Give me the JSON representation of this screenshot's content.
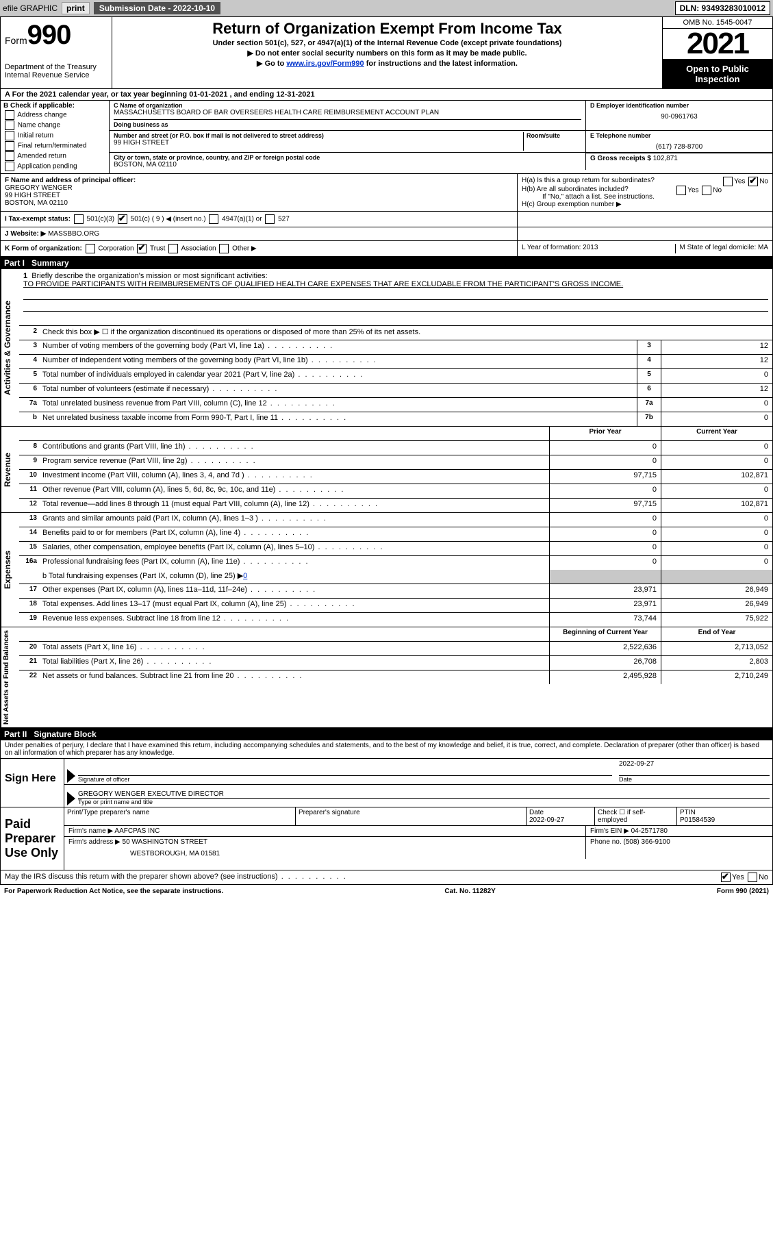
{
  "topbar": {
    "efile": "efile GRAPHIC",
    "print": "print",
    "subdate_label": "Submission Date - 2022-10-10",
    "dln": "DLN: 93493283010012"
  },
  "header": {
    "form_label": "Form",
    "form_num": "990",
    "dept": "Department of the Treasury",
    "irs": "Internal Revenue Service",
    "title": "Return of Organization Exempt From Income Tax",
    "sub1": "Under section 501(c), 527, or 4947(a)(1) of the Internal Revenue Code (except private foundations)",
    "sub2": "▶ Do not enter social security numbers on this form as it may be made public.",
    "sub3_pre": "▶ Go to ",
    "sub3_link": "www.irs.gov/Form990",
    "sub3_post": " for instructions and the latest information.",
    "omb": "OMB No. 1545-0047",
    "year": "2021",
    "inspect1": "Open to Public",
    "inspect2": "Inspection"
  },
  "A": {
    "text": "A For the 2021 calendar year, or tax year beginning 01-01-2021    , and ending 12-31-2021"
  },
  "B": {
    "label": "B Check if applicable:",
    "items": [
      "Address change",
      "Name change",
      "Initial return",
      "Final return/terminated",
      "Amended return",
      "Application pending"
    ]
  },
  "C": {
    "name_lbl": "C Name of organization",
    "name": "MASSACHUSETTS BOARD OF BAR OVERSEERS HEALTH CARE REIMBURSEMENT ACCOUNT PLAN",
    "dba_lbl": "Doing business as",
    "addr_lbl": "Number and street (or P.O. box if mail is not delivered to street address)",
    "room_lbl": "Room/suite",
    "addr": "99 HIGH STREET",
    "city_lbl": "City or town, state or province, country, and ZIP or foreign postal code",
    "city": "BOSTON, MA  02110"
  },
  "D": {
    "lbl": "D Employer identification number",
    "val": "90-0961763"
  },
  "E": {
    "lbl": "E Telephone number",
    "val": "(617) 728-8700"
  },
  "G": {
    "lbl": "G Gross receipts $",
    "val": "102,871"
  },
  "F": {
    "lbl": "F  Name and address of principal officer:",
    "name": "GREGORY WENGER",
    "addr1": "99 HIGH STREET",
    "addr2": "BOSTON, MA  02110"
  },
  "H": {
    "a": "H(a)  Is this a group return for subordinates?",
    "b": "H(b)  Are all subordinates included?",
    "b2": "If \"No,\" attach a list. See instructions.",
    "c": "H(c)  Group exemption number ▶",
    "yes": "Yes",
    "no": "No"
  },
  "I": {
    "lbl": "I    Tax-exempt status:",
    "opts": [
      "501(c)(3)",
      "501(c) ( 9 ) ◀ (insert no.)",
      "4947(a)(1) or",
      "527"
    ]
  },
  "J": {
    "lbl": "J   Website: ▶",
    "val": " MASSBBO.ORG"
  },
  "K": {
    "lbl": "K Form of organization:",
    "opts": [
      "Corporation",
      "Trust",
      "Association",
      "Other ▶"
    ]
  },
  "L": {
    "lbl": "L Year of formation: 2013"
  },
  "M": {
    "lbl": "M State of legal domicile: MA"
  },
  "part1": {
    "num": "Part I",
    "title": "Summary"
  },
  "summary": {
    "sec_ag": "Activities & Governance",
    "sec_rev": "Revenue",
    "sec_exp": "Expenses",
    "sec_net": "Net Assets or Fund Balances",
    "l1_lbl": "Briefly describe the organization's mission or most significant activities:",
    "l1_val": "TO PROVIDE PARTICIPANTS WITH REIMBURSEMENTS OF QUALIFIED HEALTH CARE EXPENSES THAT ARE EXCLUDABLE FROM THE PARTICIPANT'S GROSS INCOME.",
    "l2": "Check this box ▶ ☐  if the organization discontinued its operations or disposed of more than 25% of its net assets.",
    "rows_ag": [
      {
        "n": "3",
        "t": "Number of voting members of the governing body (Part VI, line 1a)",
        "box": "3",
        "v": "12"
      },
      {
        "n": "4",
        "t": "Number of independent voting members of the governing body (Part VI, line 1b)",
        "box": "4",
        "v": "12"
      },
      {
        "n": "5",
        "t": "Total number of individuals employed in calendar year 2021 (Part V, line 2a)",
        "box": "5",
        "v": "0"
      },
      {
        "n": "6",
        "t": "Total number of volunteers (estimate if necessary)",
        "box": "6",
        "v": "12"
      },
      {
        "n": "7a",
        "t": "Total unrelated business revenue from Part VIII, column (C), line 12",
        "box": "7a",
        "v": "0"
      },
      {
        "n": "b",
        "t": "Net unrelated business taxable income from Form 990-T, Part I, line 11",
        "box": "7b",
        "v": "0"
      }
    ],
    "col_prior": "Prior Year",
    "col_curr": "Current Year",
    "rows_rev": [
      {
        "n": "8",
        "t": "Contributions and grants (Part VIII, line 1h)",
        "p": "0",
        "c": "0"
      },
      {
        "n": "9",
        "t": "Program service revenue (Part VIII, line 2g)",
        "p": "0",
        "c": "0"
      },
      {
        "n": "10",
        "t": "Investment income (Part VIII, column (A), lines 3, 4, and 7d )",
        "p": "97,715",
        "c": "102,871"
      },
      {
        "n": "11",
        "t": "Other revenue (Part VIII, column (A), lines 5, 6d, 8c, 9c, 10c, and 11e)",
        "p": "0",
        "c": "0"
      },
      {
        "n": "12",
        "t": "Total revenue—add lines 8 through 11 (must equal Part VIII, column (A), line 12)",
        "p": "97,715",
        "c": "102,871"
      }
    ],
    "rows_exp": [
      {
        "n": "13",
        "t": "Grants and similar amounts paid (Part IX, column (A), lines 1–3 )",
        "p": "0",
        "c": "0"
      },
      {
        "n": "14",
        "t": "Benefits paid to or for members (Part IX, column (A), line 4)",
        "p": "0",
        "c": "0"
      },
      {
        "n": "15",
        "t": "Salaries, other compensation, employee benefits (Part IX, column (A), lines 5–10)",
        "p": "0",
        "c": "0"
      },
      {
        "n": "16a",
        "t": "Professional fundraising fees (Part IX, column (A), line 11e)",
        "p": "0",
        "c": "0"
      }
    ],
    "l16b": "b  Total fundraising expenses (Part IX, column (D), line 25) ▶",
    "l16b_val": "0",
    "rows_exp2": [
      {
        "n": "17",
        "t": "Other expenses (Part IX, column (A), lines 11a–11d, 11f–24e)",
        "p": "23,971",
        "c": "26,949"
      },
      {
        "n": "18",
        "t": "Total expenses. Add lines 13–17 (must equal Part IX, column (A), line 25)",
        "p": "23,971",
        "c": "26,949"
      },
      {
        "n": "19",
        "t": "Revenue less expenses. Subtract line 18 from line 12",
        "p": "73,744",
        "c": "75,922"
      }
    ],
    "col_beg": "Beginning of Current Year",
    "col_end": "End of Year",
    "rows_net": [
      {
        "n": "20",
        "t": "Total assets (Part X, line 16)",
        "p": "2,522,636",
        "c": "2,713,052"
      },
      {
        "n": "21",
        "t": "Total liabilities (Part X, line 26)",
        "p": "26,708",
        "c": "2,803"
      },
      {
        "n": "22",
        "t": "Net assets or fund balances. Subtract line 21 from line 20",
        "p": "2,495,928",
        "c": "2,710,249"
      }
    ]
  },
  "part2": {
    "num": "Part II",
    "title": "Signature Block"
  },
  "penalty": "Under penalties of perjury, I declare that I have examined this return, including accompanying schedules and statements, and to the best of my knowledge and belief, it is true, correct, and complete. Declaration of preparer (other than officer) is based on all information of which preparer has any knowledge.",
  "sign": {
    "here": "Sign Here",
    "sig_lbl": "Signature of officer",
    "date_lbl": "Date",
    "date_val": "2022-09-27",
    "name": "GREGORY WENGER  EXECUTIVE DIRECTOR",
    "name_lbl": "Type or print name and title"
  },
  "preparer": {
    "title": "Paid Preparer Use Only",
    "h1": "Print/Type preparer's name",
    "h2": "Preparer's signature",
    "h3": "Date",
    "h3v": "2022-09-27",
    "h4": "Check ☐ if self-employed",
    "h5": "PTIN",
    "h5v": "P01584539",
    "firm_lbl": "Firm's name     ▶",
    "firm": "AAFCPAS INC",
    "ein_lbl": "Firm's EIN ▶",
    "ein": "04-2571780",
    "addr_lbl": "Firm's address ▶",
    "addr1": "50 WASHINGTON STREET",
    "addr2": "WESTBOROUGH, MA  01581",
    "phone_lbl": "Phone no.",
    "phone": "(508) 366-9100"
  },
  "discuss": {
    "text": "May the IRS discuss this return with the preparer shown above? (see instructions)",
    "yes": "Yes",
    "no": "No"
  },
  "footer": {
    "left": "For Paperwork Reduction Act Notice, see the separate instructions.",
    "mid": "Cat. No. 11282Y",
    "right": "Form 990 (2021)"
  }
}
